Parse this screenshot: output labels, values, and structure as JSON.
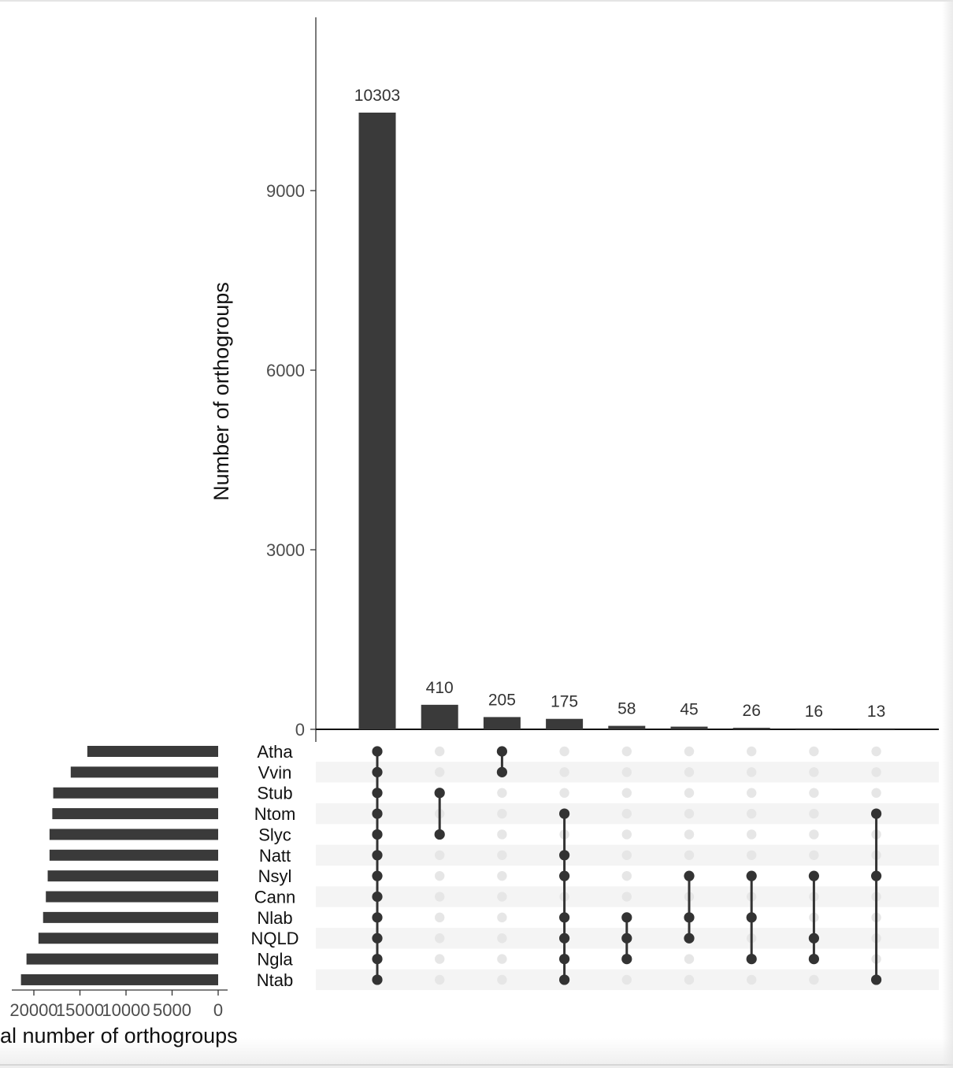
{
  "chart_data": {
    "type": "bar",
    "subtype": "upset",
    "ylabel": "Number of orthogroups",
    "ylim": [
      0,
      11880
    ],
    "yticks": [
      0,
      3000,
      6000,
      9000
    ],
    "intersection_sizes": [
      10303,
      410,
      205,
      175,
      58,
      45,
      26,
      16,
      13
    ],
    "sets": [
      "Atha",
      "Vvin",
      "Stub",
      "Ntom",
      "Slyc",
      "Natt",
      "Nsyl",
      "Cann",
      "Nlab",
      "NQLD",
      "Ngla",
      "Ntab"
    ],
    "intersections": [
      [
        "Atha",
        "Vvin",
        "Stub",
        "Ntom",
        "Slyc",
        "Natt",
        "Nsyl",
        "Cann",
        "Nlab",
        "NQLD",
        "Ngla",
        "Ntab"
      ],
      [
        "Stub",
        "Slyc"
      ],
      [
        "Atha",
        "Vvin"
      ],
      [
        "Ntom",
        "Natt",
        "Nsyl",
        "Nlab",
        "NQLD",
        "Ngla",
        "Ntab"
      ],
      [
        "Nlab",
        "NQLD",
        "Ngla"
      ],
      [
        "Nsyl",
        "Nlab",
        "NQLD"
      ],
      [
        "Nsyl",
        "Nlab",
        "Ngla"
      ],
      [
        "Nsyl",
        "NQLD",
        "Ngla"
      ],
      [
        "Ntom",
        "Nsyl",
        "Ntab"
      ]
    ],
    "set_sizes": {
      "xlabel": "Total number of orthogroups",
      "xlabel_visible": "al number of orthogroups",
      "xticks": [
        20000,
        15000,
        10000,
        5000,
        0
      ],
      "xticks_text": [
        "20000",
        "15000",
        "10000",
        "5000",
        "0"
      ],
      "values": [
        14200,
        16000,
        17900,
        18000,
        18300,
        18300,
        18500,
        18700,
        19000,
        19500,
        20800,
        21400
      ]
    },
    "colors": {
      "bar": "#3a3a3a",
      "dot_active": "#333333",
      "dot_inactive": "#e6e6e6",
      "stripe": "#f4f4f4",
      "tick_text": "#4d4d4d"
    }
  }
}
